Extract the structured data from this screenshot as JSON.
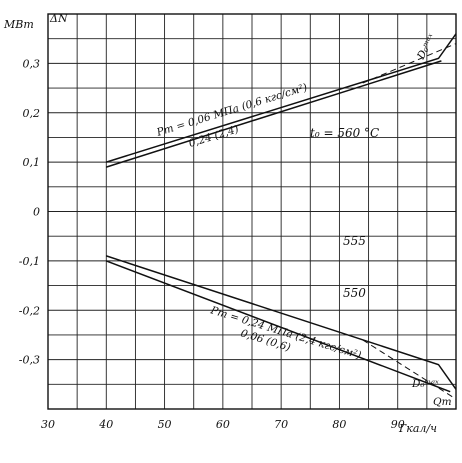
{
  "chart_data": {
    "type": "line",
    "x_unit": "Гкал/ч",
    "y_unit": "МВт",
    "y_symbol": "ΔN",
    "xlim": [
      30,
      100
    ],
    "ylim": [
      -0.4,
      0.4
    ],
    "x_ticks": [
      "30",
      "40",
      "50",
      "60",
      "70",
      "80",
      "90"
    ],
    "y_ticks": [
      "0,3",
      "0,2",
      "0,1",
      "0",
      "-0,1",
      "-0,2",
      "-0,3"
    ],
    "grid": true,
    "series": [
      {
        "group": "upper",
        "style": "solid",
        "points": [
          [
            40,
            0.1
          ],
          [
            97,
            0.31
          ],
          [
            100,
            0.36
          ]
        ]
      },
      {
        "group": "upper",
        "style": "solid",
        "points": [
          [
            40,
            0.09
          ],
          [
            97.5,
            0.305
          ]
        ]
      },
      {
        "group": "upper",
        "style": "dashed",
        "points": [
          [
            84,
            0.26
          ],
          [
            100,
            0.34
          ]
        ]
      },
      {
        "group": "lower",
        "style": "solid",
        "points": [
          [
            40,
            -0.09
          ],
          [
            97,
            -0.31
          ],
          [
            100,
            -0.36
          ]
        ]
      },
      {
        "group": "lower",
        "style": "solid",
        "points": [
          [
            40,
            -0.1
          ],
          [
            99,
            -0.365
          ]
        ]
      },
      {
        "group": "lower",
        "style": "dashed",
        "points": [
          [
            84,
            -0.26
          ],
          [
            100,
            -0.38
          ]
        ]
      }
    ],
    "annotations": {
      "upper_pt": "Pт = 0,06 МПа (0,6 кгс/см²)",
      "upper_pt2": "0,24 (2,4)",
      "t0": "t₀ = 560 °С",
      "d0max_upper": "D₀ᵐᵃˣ",
      "iso_555": "555",
      "iso_550": "550",
      "lower_pt": "Pт = 0,24 МПа (2,4 кгс/см²)",
      "lower_pt2": "0,06 (0,6)",
      "d0max_lower": "D₀ᵐᵃˣ",
      "qt": "Qт"
    }
  }
}
